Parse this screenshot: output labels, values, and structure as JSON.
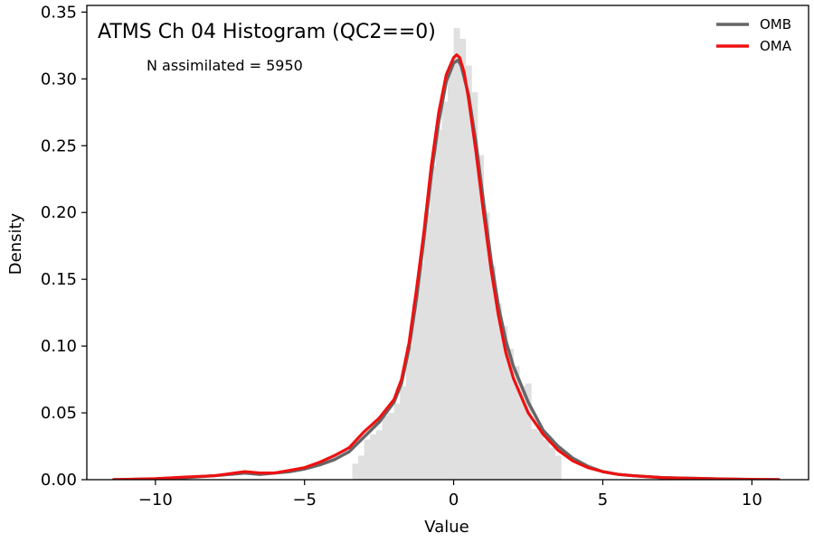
{
  "chart_data": {
    "type": "line",
    "title": "ATMS Ch 04 Histogram (QC2==0)",
    "annotation": "N assimilated = 5950",
    "xlabel": "Value",
    "ylabel": "Density",
    "xlim": [
      -12.3,
      11.9
    ],
    "ylim": [
      0,
      0.355
    ],
    "xticks": [
      -10,
      -5,
      0,
      5,
      10
    ],
    "xtick_labels": [
      "−10",
      "−5",
      "0",
      "5",
      "10"
    ],
    "yticks": [
      0.0,
      0.05,
      0.1,
      0.15,
      0.2,
      0.25,
      0.3,
      0.35
    ],
    "ytick_labels": [
      "0.00",
      "0.05",
      "0.10",
      "0.15",
      "0.20",
      "0.25",
      "0.30",
      "0.35"
    ],
    "legend_position": "top-right",
    "histogram": {
      "color": "#e0e0e0",
      "bin_width": 0.2,
      "bins": [
        [
          -3.4,
          0.012
        ],
        [
          -3.2,
          0.018
        ],
        [
          -3.0,
          0.03
        ],
        [
          -2.8,
          0.034
        ],
        [
          -2.6,
          0.037
        ],
        [
          -2.4,
          0.048
        ],
        [
          -2.2,
          0.05
        ],
        [
          -2.0,
          0.057
        ],
        [
          -1.8,
          0.07
        ],
        [
          -1.6,
          0.1
        ],
        [
          -1.4,
          0.132
        ],
        [
          -1.2,
          0.162
        ],
        [
          -1.0,
          0.2
        ],
        [
          -0.8,
          0.235
        ],
        [
          -0.6,
          0.262
        ],
        [
          -0.4,
          0.283
        ],
        [
          -0.2,
          0.31
        ],
        [
          0.0,
          0.338
        ],
        [
          0.2,
          0.33
        ],
        [
          0.4,
          0.31
        ],
        [
          0.6,
          0.29
        ],
        [
          0.8,
          0.243
        ],
        [
          1.0,
          0.2
        ],
        [
          1.2,
          0.16
        ],
        [
          1.4,
          0.132
        ],
        [
          1.6,
          0.115
        ],
        [
          1.8,
          0.098
        ],
        [
          2.0,
          0.085
        ],
        [
          2.2,
          0.07
        ],
        [
          2.4,
          0.072
        ],
        [
          2.6,
          0.038
        ],
        [
          2.8,
          0.036
        ],
        [
          3.0,
          0.03
        ],
        [
          3.2,
          0.024
        ],
        [
          3.4,
          0.018
        ]
      ]
    },
    "series": [
      {
        "name": "OMB",
        "color": "#666666",
        "x": [
          -11.4,
          -10.0,
          -9.0,
          -8.0,
          -7.0,
          -6.5,
          -6.0,
          -5.5,
          -5.0,
          -4.5,
          -4.0,
          -3.5,
          -3.0,
          -2.5,
          -2.0,
          -1.75,
          -1.5,
          -1.25,
          -1.0,
          -0.75,
          -0.5,
          -0.25,
          0.0,
          0.15,
          0.25,
          0.5,
          0.75,
          1.0,
          1.25,
          1.5,
          1.75,
          2.0,
          2.5,
          3.0,
          3.5,
          4.0,
          4.5,
          5.0,
          5.5,
          6.0,
          7.0,
          8.0,
          9.0,
          10.0,
          10.9
        ],
        "y": [
          0.0,
          0.0005,
          0.0015,
          0.003,
          0.005,
          0.004,
          0.005,
          0.006,
          0.008,
          0.011,
          0.015,
          0.021,
          0.032,
          0.043,
          0.058,
          0.072,
          0.098,
          0.135,
          0.18,
          0.228,
          0.268,
          0.298,
          0.312,
          0.314,
          0.31,
          0.288,
          0.252,
          0.208,
          0.165,
          0.13,
          0.104,
          0.085,
          0.058,
          0.037,
          0.025,
          0.016,
          0.01,
          0.006,
          0.004,
          0.003,
          0.0015,
          0.001,
          0.0005,
          0.0002,
          0.0
        ]
      },
      {
        "name": "OMA",
        "color": "#ee1111",
        "x": [
          -11.4,
          -10.0,
          -9.0,
          -8.0,
          -7.0,
          -6.5,
          -6.0,
          -5.5,
          -5.0,
          -4.5,
          -4.0,
          -3.5,
          -3.0,
          -2.5,
          -2.0,
          -1.75,
          -1.5,
          -1.25,
          -1.0,
          -0.75,
          -0.5,
          -0.25,
          0.0,
          0.1,
          0.2,
          0.35,
          0.5,
          0.75,
          1.0,
          1.25,
          1.5,
          1.75,
          2.0,
          2.5,
          3.0,
          3.5,
          4.0,
          4.5,
          5.0,
          5.5,
          6.0,
          7.0,
          8.0,
          9.0,
          10.0,
          10.9
        ],
        "y": [
          0.0,
          0.0008,
          0.002,
          0.003,
          0.006,
          0.005,
          0.005,
          0.007,
          0.009,
          0.013,
          0.018,
          0.024,
          0.036,
          0.046,
          0.06,
          0.075,
          0.102,
          0.142,
          0.185,
          0.235,
          0.275,
          0.303,
          0.316,
          0.318,
          0.316,
          0.305,
          0.285,
          0.245,
          0.2,
          0.158,
          0.123,
          0.095,
          0.076,
          0.05,
          0.034,
          0.022,
          0.014,
          0.009,
          0.006,
          0.004,
          0.003,
          0.0015,
          0.001,
          0.0005,
          0.0002,
          0.0
        ]
      }
    ]
  }
}
